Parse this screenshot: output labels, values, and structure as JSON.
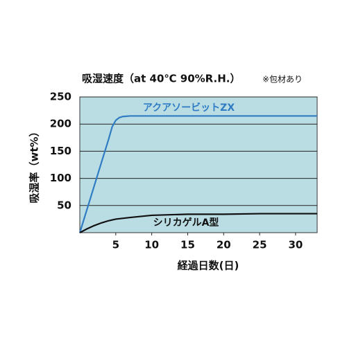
{
  "chart_data": {
    "type": "line",
    "title": "吸湿速度（at 40℃ 90%R.H.）",
    "note": "※包材あり",
    "x_label": "経過日数(日)",
    "y_label": "吸湿率（wt%）",
    "xlim": [
      0,
      33
    ],
    "ylim": [
      0,
      250
    ],
    "xticks": [
      5,
      10,
      15,
      20,
      25,
      30
    ],
    "yticks": [
      50,
      100,
      150,
      200,
      250
    ],
    "grid": true,
    "background": "#b9dde3",
    "series": [
      {
        "name": "アクアソービットZX",
        "color": "#2f7cc4",
        "x": [
          0,
          1,
          2,
          3,
          4,
          4.5,
          5,
          5.5,
          6,
          7,
          10,
          15,
          20,
          25,
          30,
          33
        ],
        "values": [
          0,
          43,
          86,
          129,
          172,
          195,
          207,
          212,
          214,
          215,
          215,
          215,
          215,
          215,
          215,
          215
        ]
      },
      {
        "name": "シリカゲルA型",
        "color": "#111111",
        "x": [
          0,
          1,
          2,
          3,
          4,
          5,
          7,
          10,
          15,
          20,
          25,
          30,
          33
        ],
        "values": [
          0,
          7,
          13,
          18,
          22,
          25,
          28,
          32,
          34,
          34,
          35,
          35,
          35
        ]
      }
    ]
  }
}
